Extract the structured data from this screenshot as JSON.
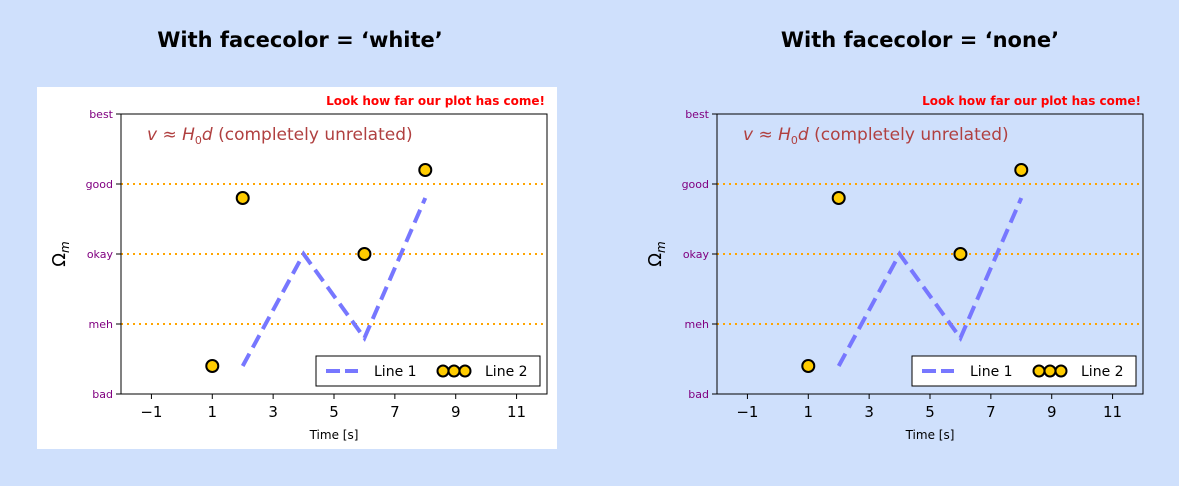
{
  "panels": [
    {
      "title": "With facecolor = ‘white’",
      "facecolor": "#ffffff"
    },
    {
      "title": "With facecolor = ‘none’",
      "facecolor": "none"
    }
  ],
  "chart_data": {
    "type": "line",
    "suptitle": "Look how far our plot has come!",
    "annotation": {
      "text_var": "v ≈ H",
      "sub": "0",
      "text_rest": "d (completely unrelated)"
    },
    "xlabel": "Time  [s]",
    "ylabel": "Ω",
    "ylabel_sub": "m",
    "xlim": [
      -2,
      12
    ],
    "ylim": [
      0,
      4
    ],
    "xticks": [
      -1,
      1,
      3,
      5,
      7,
      9,
      11
    ],
    "xtick_labels": [
      "−1",
      "1",
      "3",
      "5",
      "7",
      "9",
      "11"
    ],
    "yticks": [
      0,
      1,
      2,
      3,
      4
    ],
    "ytick_labels": [
      "bad",
      "meh",
      "okay",
      "good",
      "best"
    ],
    "hlines": [
      1,
      2,
      3
    ],
    "series": [
      {
        "name": "Line 1",
        "x": [
          2,
          4,
          6,
          8
        ],
        "y": [
          0.4,
          2.0,
          0.8,
          2.8
        ],
        "color": "#7777ff",
        "style": "dashed"
      },
      {
        "name": "Line 2",
        "x": [
          1,
          2,
          6,
          8
        ],
        "y": [
          0.4,
          2.8,
          2.0,
          3.2
        ],
        "color": "#ffcc00",
        "edge": "#000000",
        "style": "markers"
      }
    ],
    "legend_position": "lower-right",
    "colors": {
      "suptitle": "#ff0000",
      "annotation": "#b04040",
      "ticklabels": "#800080",
      "hline": "#ffa500"
    }
  }
}
